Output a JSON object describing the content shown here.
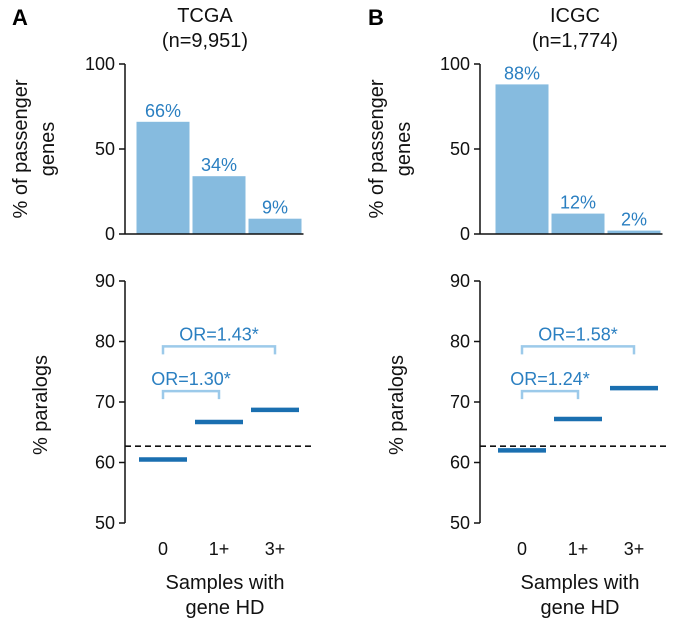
{
  "panels": [
    {
      "letter": "A",
      "title": "TCGA",
      "subtitle": "(n=9,951)"
    },
    {
      "letter": "B",
      "title": "ICGC",
      "subtitle": "(n=1,774)"
    }
  ],
  "colors": {
    "bar": "#86bbdf",
    "median_line": "#1a6fb0",
    "bracket": "#9ccaea",
    "text_accent": "#2a7fc1",
    "axis": "#111111"
  },
  "xlabel_line1": "Samples with",
  "xlabel_line2": "gene HD",
  "chart_data": [
    {
      "type": "bar",
      "panel": "A",
      "title": "TCGA (n=9,951)",
      "categories": [
        "0",
        "1+",
        "3+"
      ],
      "values": [
        66,
        34,
        9
      ],
      "value_labels": [
        "66%",
        "34%",
        "9%"
      ],
      "ylabel_line1": "% of passenger",
      "ylabel_line2": "genes",
      "ylim": [
        0,
        100
      ],
      "yticks": [
        0,
        50,
        100
      ]
    },
    {
      "type": "line",
      "panel": "A",
      "categories": [
        "0",
        "1+",
        "3+"
      ],
      "values": [
        60.5,
        66.7,
        68.7
      ],
      "reference_line": 62.7,
      "ylabel": "% paralogs",
      "ylim": [
        50,
        90
      ],
      "yticks": [
        50,
        60,
        70,
        80,
        90
      ],
      "annotations": [
        {
          "label": "OR=1.30*",
          "from": "0",
          "to": "1+",
          "y": 71.8
        },
        {
          "label": "OR=1.43*",
          "from": "0",
          "to": "3+",
          "y": 79.2
        }
      ],
      "xlabel": "Samples with gene HD"
    },
    {
      "type": "bar",
      "panel": "B",
      "title": "ICGC (n=1,774)",
      "categories": [
        "0",
        "1+",
        "3+"
      ],
      "values": [
        88,
        12,
        2
      ],
      "value_labels": [
        "88%",
        "12%",
        "2%"
      ],
      "ylabel_line1": "% of passenger",
      "ylabel_line2": "genes",
      "ylim": [
        0,
        100
      ],
      "yticks": [
        0,
        50,
        100
      ]
    },
    {
      "type": "line",
      "panel": "B",
      "categories": [
        "0",
        "1+",
        "3+"
      ],
      "values": [
        62,
        67.2,
        72.3
      ],
      "reference_line": 62.7,
      "ylabel": "% paralogs",
      "ylim": [
        50,
        90
      ],
      "yticks": [
        50,
        60,
        70,
        80,
        90
      ],
      "annotations": [
        {
          "label": "OR=1.24*",
          "from": "0",
          "to": "1+",
          "y": 71.8
        },
        {
          "label": "OR=1.58*",
          "from": "0",
          "to": "3+",
          "y": 79.2
        }
      ],
      "xlabel": "Samples with gene HD"
    }
  ]
}
